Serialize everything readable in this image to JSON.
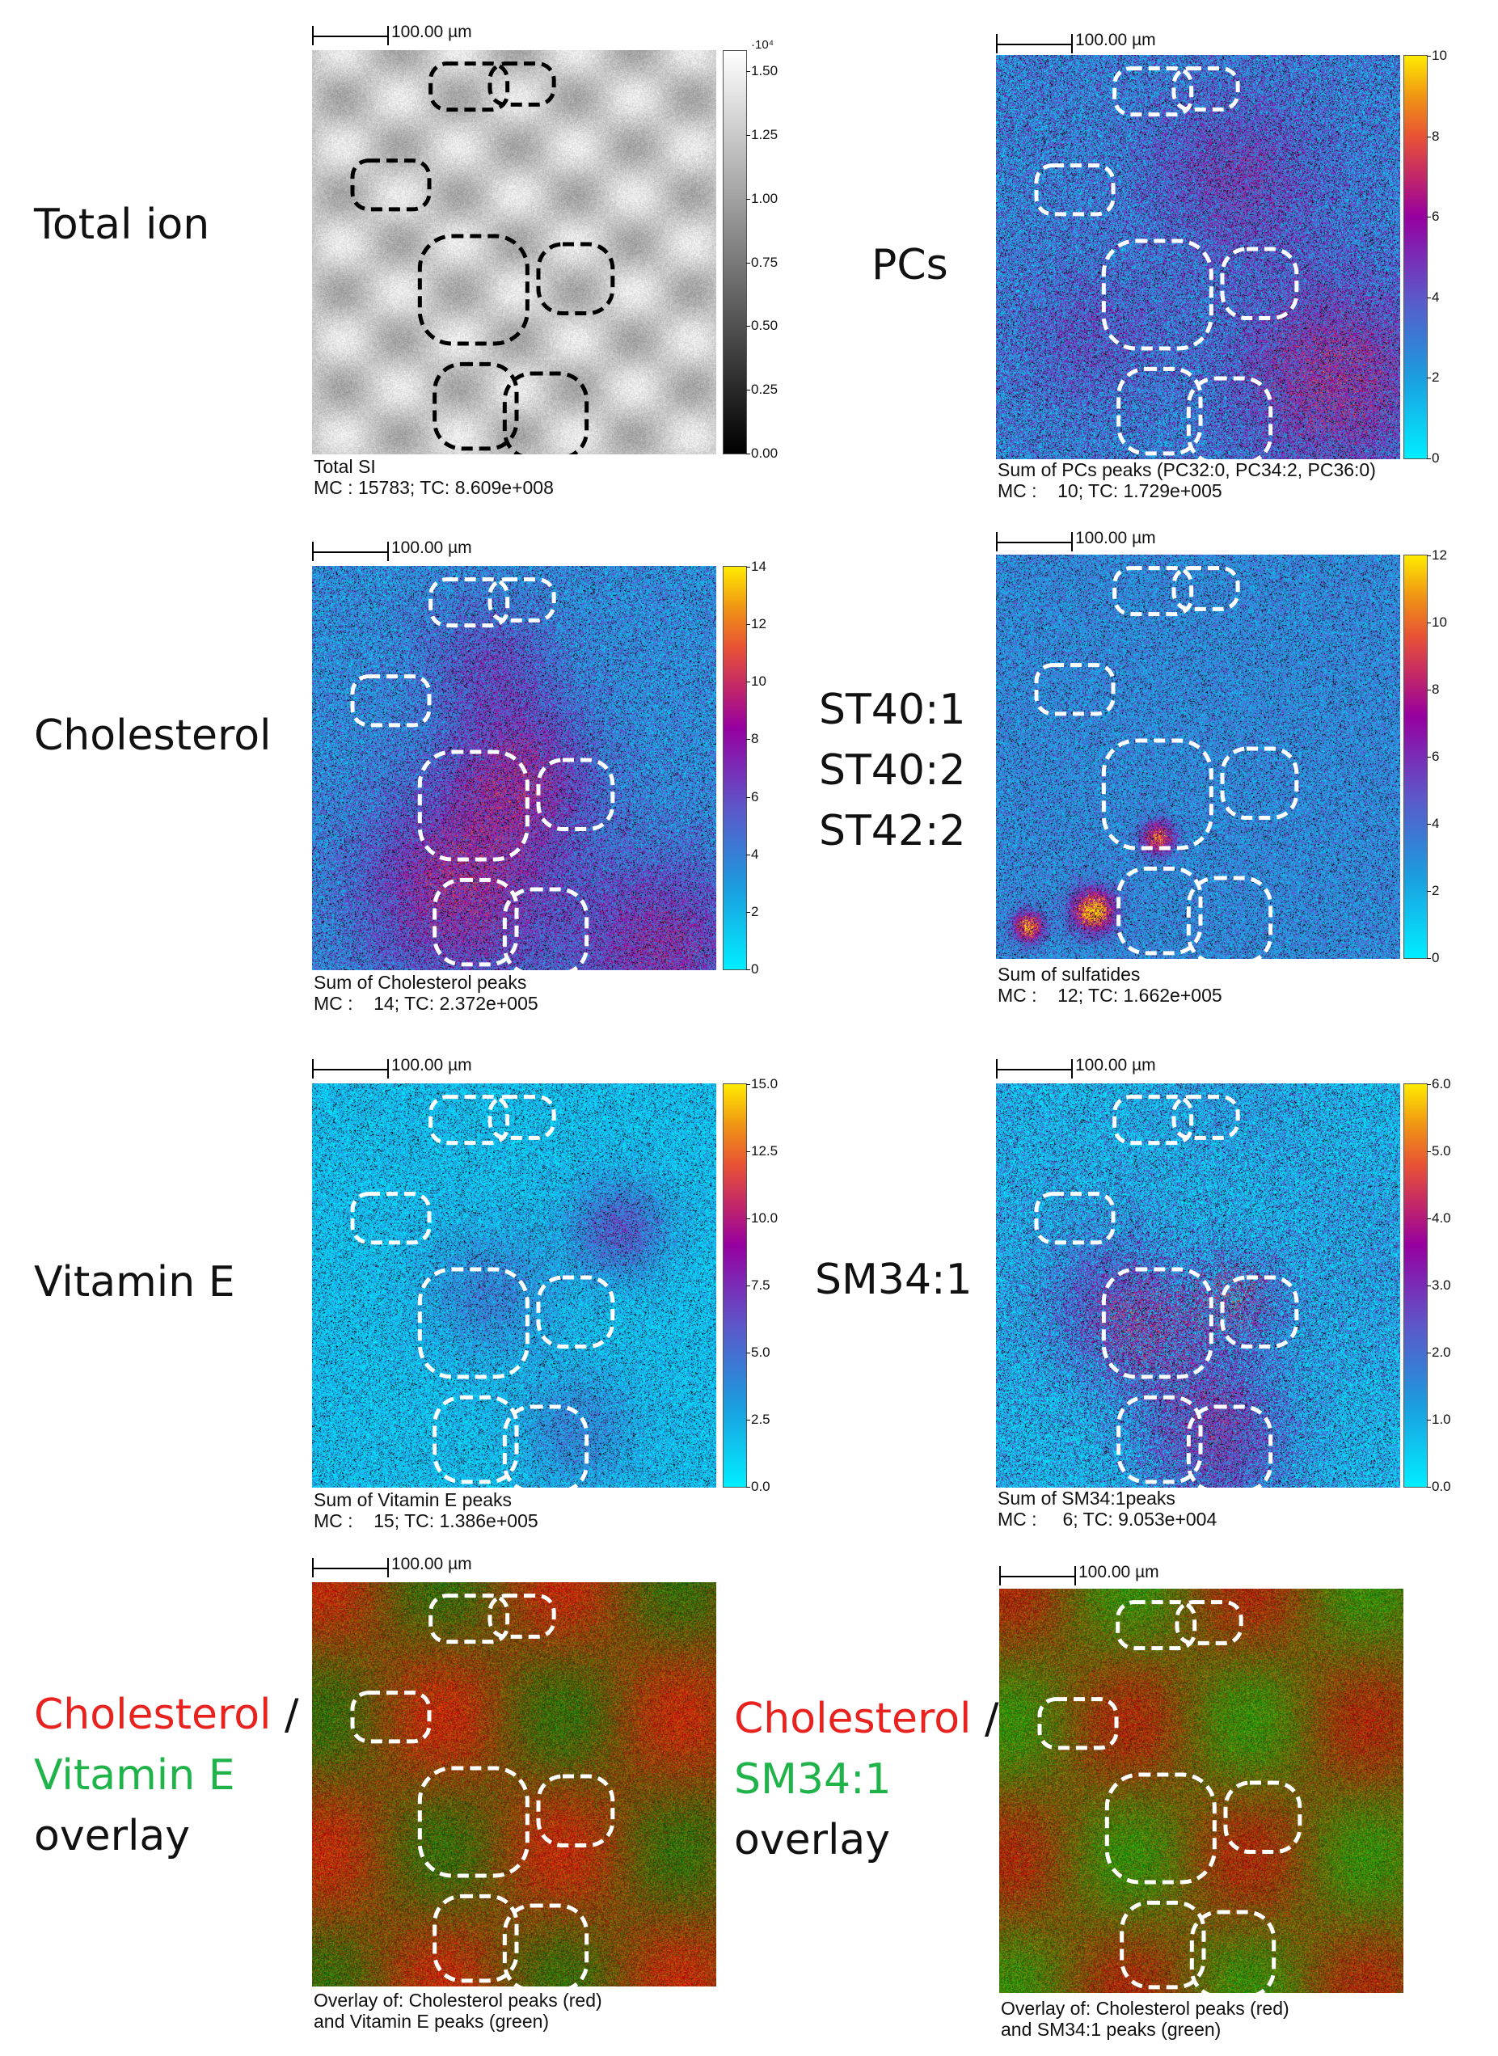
{
  "colors": {
    "red_label": "#e8231f",
    "green_label": "#1fb34a",
    "roi_dark": "#000000",
    "roi_light": "#ffffff"
  },
  "labels": {
    "total_ion": "Total ion",
    "pcs": "PCs",
    "cholesterol": "Cholesterol",
    "st_lines": [
      "ST40:1",
      "ST40:2",
      "ST42:2"
    ],
    "vitamin_e": "Vitamin E",
    "sm": "SM34:1",
    "overlay1": {
      "a": "Cholesterol",
      "sep": "/",
      "b": "Vitamin E",
      "c": "overlay"
    },
    "overlay2": {
      "a": "Cholesterol",
      "sep": "/",
      "b": "SM34:1",
      "c": "overlay"
    }
  },
  "panels": {
    "total": {
      "scale": "100.00 µm",
      "colorbar": "gray",
      "ticks": [
        "1.50",
        "1.25",
        "1.00",
        "0.75",
        "0.50",
        "0.25",
        "0.00"
      ],
      "tick_values": [
        1.5,
        1.25,
        1.0,
        0.75,
        0.5,
        0.25,
        0.0
      ],
      "max": 1.58,
      "exponent": "·10⁴",
      "caption": [
        "Total SI",
        "MC : 15783; TC: 8.609e+008"
      ]
    },
    "pcs": {
      "scale": "100.00 µm",
      "colorbar": "fire",
      "ticks": [
        "10",
        "8",
        "6",
        "4",
        "2",
        "0"
      ],
      "tick_values": [
        10,
        8,
        6,
        4,
        2,
        0
      ],
      "max": 10,
      "caption": [
        "Sum of PCs peaks (PC32:0, PC34:2, PC36:0)",
        "MC :    10; TC: 1.729e+005"
      ]
    },
    "chol": {
      "scale": "100.00 µm",
      "colorbar": "fire",
      "ticks": [
        "14",
        "12",
        "10",
        "8",
        "6",
        "4",
        "2",
        "0"
      ],
      "tick_values": [
        14,
        12,
        10,
        8,
        6,
        4,
        2,
        0
      ],
      "max": 14,
      "caption": [
        "Sum of Cholesterol peaks",
        "MC :    14; TC: 2.372e+005"
      ]
    },
    "sulf": {
      "scale": "100.00 µm",
      "colorbar": "fire",
      "ticks": [
        "12",
        "10",
        "8",
        "6",
        "4",
        "2",
        "0"
      ],
      "tick_values": [
        12,
        10,
        8,
        6,
        4,
        2,
        0
      ],
      "max": 12,
      "caption": [
        "Sum of sulfatides",
        "MC :    12; TC: 1.662e+005"
      ]
    },
    "vite": {
      "scale": "100.00 µm",
      "colorbar": "fire",
      "ticks": [
        "15.0",
        "12.5",
        "10.0",
        "7.5",
        "5.0",
        "2.5",
        "0.0"
      ],
      "tick_values": [
        15,
        12.5,
        10,
        7.5,
        5,
        2.5,
        0
      ],
      "max": 15,
      "caption": [
        "Sum of Vitamin E peaks",
        "MC :    15; TC: 1.386e+005"
      ]
    },
    "sm": {
      "scale": "100.00 µm",
      "colorbar": "fire",
      "ticks": [
        "6.0",
        "5.0",
        "4.0",
        "3.0",
        "2.0",
        "1.0",
        "0.0"
      ],
      "tick_values": [
        6,
        5,
        4,
        3,
        2,
        1,
        0
      ],
      "max": 6,
      "caption": [
        "Sum of SM34:1peaks",
        "MC :     6; TC: 9.053e+004"
      ]
    },
    "ov1": {
      "scale": "100.00 µm",
      "caption": [
        "Overlay of: Cholesterol peaks (red)",
        "and Vitamin E peaks (green)"
      ]
    },
    "ov2": {
      "scale": "100.00 µm",
      "caption": [
        "Overlay of: Cholesterol peaks (red)",
        "and SM34:1 peaks (green)"
      ]
    }
  }
}
